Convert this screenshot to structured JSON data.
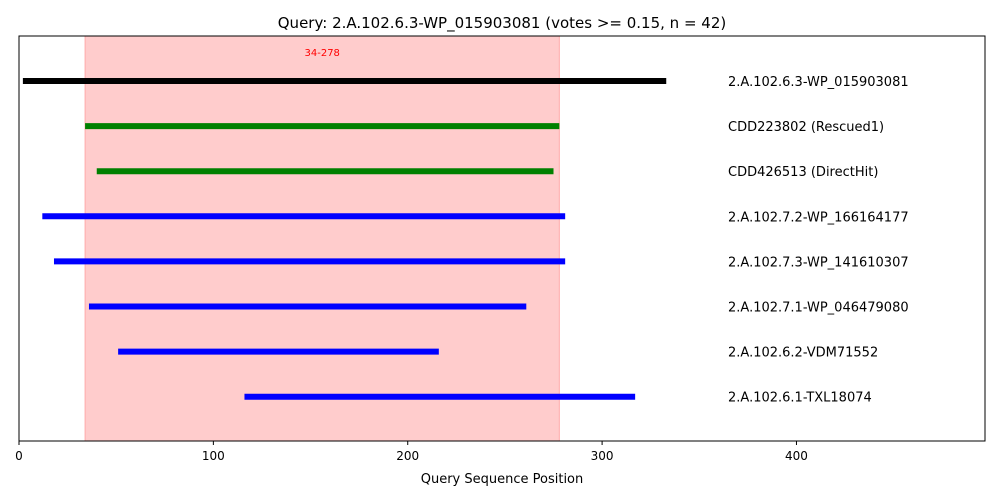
{
  "chart_data": {
    "type": "bar",
    "orientation": "horizontal-range",
    "title": "Query: 2.A.102.6.3-WP_015903081 (votes >= 0.15, n = 42)",
    "xlabel": "Query Sequence Position",
    "ylabel": "",
    "xlim": [
      0,
      497
    ],
    "xticks": [
      0,
      100,
      200,
      300,
      400
    ],
    "grid": false,
    "highlight_region": {
      "start": 34,
      "end": 278,
      "label": "34-278",
      "color": "#ffcccc",
      "label_color": "#ff0000"
    },
    "series": [
      {
        "name": "2.A.102.6.3-WP_015903081",
        "start": 2,
        "end": 333,
        "color": "#000000"
      },
      {
        "name": "CDD223802 (Rescued1)",
        "start": 34,
        "end": 278,
        "color": "#008000"
      },
      {
        "name": "CDD426513 (DirectHit)",
        "start": 40,
        "end": 275,
        "color": "#008000"
      },
      {
        "name": "2.A.102.7.2-WP_166164177",
        "start": 12,
        "end": 281,
        "color": "#0000ff"
      },
      {
        "name": "2.A.102.7.3-WP_141610307",
        "start": 18,
        "end": 281,
        "color": "#0000ff"
      },
      {
        "name": "2.A.102.7.1-WP_046479080",
        "start": 36,
        "end": 261,
        "color": "#0000ff"
      },
      {
        "name": "2.A.102.6.2-VDM71552",
        "start": 51,
        "end": 216,
        "color": "#0000ff"
      },
      {
        "name": "2.A.102.6.1-TXL18074",
        "start": 116,
        "end": 317,
        "color": "#0000ff"
      }
    ]
  }
}
